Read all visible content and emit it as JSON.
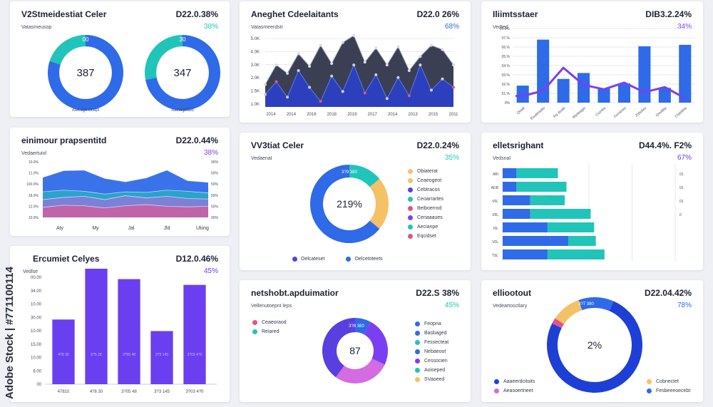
{
  "colors": {
    "blue": "#2f6ae8",
    "deep_blue": "#1e3fd6",
    "teal": "#21c4b8",
    "purple": "#6a3ff0",
    "violet": "#7b3ff2",
    "pink": "#e8508a",
    "orange": "#f5c166",
    "magenta": "#d46be0",
    "light": "#e9ecf3",
    "grid": "#e6e8ee",
    "text": "#1c2233"
  },
  "cards": {
    "c1": {
      "title": "V2Stmeidestiat Celer",
      "value": "D22.0.38%",
      "sub": "Vatasmeusop",
      "pct": "38%"
    },
    "c2": {
      "title": "Aneghet Cdeelaitants",
      "value": "D22.0 26%",
      "sub": "Vatasmeerdstr",
      "pct": "68%"
    },
    "c3": {
      "title": "Iliimtsstaer",
      "value": "DIB3.2.24%",
      "sub": "Vedted",
      "pct": "34%"
    },
    "c4": {
      "title": "einimour prapsentitd",
      "value": "D22.0.44%",
      "sub": "Vedaertuiol",
      "pct": "38%"
    },
    "c5": {
      "title": "VV3tiat Celer",
      "value": "D22.0.24%",
      "sub": "Vedaenat",
      "pct": "35%"
    },
    "c6": {
      "title": "elletsrighant",
      "value": "D44.4%. F2%",
      "sub": "Vedsnal",
      "pct": "67%"
    },
    "c7": {
      "title": "Ercumiet Celyes",
      "value": "D12.0.46%",
      "sub": "Vedlse",
      "pct": "45%"
    },
    "c8": {
      "title": "netshobt.apduimatior",
      "value": "D22.S 38%",
      "sub": "Vellenutoepnt leps",
      "pct": "45%"
    },
    "c9": {
      "title": "elliootout",
      "value": "D22.04.42%",
      "sub": "Vedeartosctlary",
      "pct": "78%"
    }
  },
  "watermark": "Adobe Stock | #771100114",
  "chart_data": [
    {
      "id": "c1",
      "type": "pie",
      "title": "V2Stmeidestiat Celer",
      "donuts": [
        {
          "center_label": "387",
          "top_label": "00",
          "bottom_label": "Aweage Scept",
          "slices": [
            {
              "value": 80,
              "color": "#2f6ae8"
            },
            {
              "value": 20,
              "color": "#21c4b8"
            }
          ]
        },
        {
          "center_label": "347",
          "top_label": "30",
          "bottom_label": "Aaviagetibd",
          "slices": [
            {
              "value": 72,
              "color": "#2f6ae8"
            },
            {
              "value": 28,
              "color": "#21c4b8"
            }
          ]
        }
      ]
    },
    {
      "id": "c2",
      "type": "area",
      "title": "Aneghet Cdeelaitants",
      "x_labels": [
        "2014",
        "2014",
        "2016",
        "2018",
        "2019",
        "2017",
        "2014",
        "2013",
        "2015",
        "2011"
      ],
      "y_labels": [
        "5.0K",
        "4.0K",
        "3.0K",
        "2.0K",
        "1.5K",
        "1.0K"
      ],
      "ylim": [
        0,
        5.5
      ],
      "series": [
        {
          "values": [
            1.6,
            3.0,
            2.4,
            3.8,
            2.9,
            4.4,
            3.1,
            4.6,
            5.1,
            3.2,
            4.2,
            3.0,
            4.3,
            2.6,
            3.6,
            4.4,
            4.1,
            3.0
          ]
        },
        {
          "values": [
            0.9,
            1.8,
            0.7,
            2.6,
            1.4,
            0.4,
            2.2,
            1.1,
            3.0,
            1.0,
            2.3,
            0.6,
            2.1,
            0.8,
            3.0,
            1.2,
            2.0,
            1.4
          ]
        }
      ],
      "dark_color": "#3b3f54",
      "front_color": "#2b40c8"
    },
    {
      "id": "c3",
      "type": "bar",
      "title": "Iliimtsstaer",
      "categories": [
        "Qeaiit",
        "Esuetriadio",
        "Ioy dustb",
        "Wyrteagio",
        "Ciumbo",
        "Dzrnbreo",
        "Zrttiobro",
        "Qreditlsi",
        "Cliahtlihe"
      ],
      "y_labels": [
        "01.8%",
        "07.%",
        "06.%",
        "05.%",
        "04.%",
        "03.%",
        "02.%",
        "01.%",
        "0%"
      ],
      "ylim": [
        0,
        10
      ],
      "values": [
        2.3,
        8.5,
        3.2,
        4.0,
        1.9,
        2.6,
        7.6,
        2.0,
        7.8
      ],
      "line": [
        0.9,
        1.6,
        4.7,
        2.4,
        1.8,
        2.7,
        1.4,
        2.1,
        0.6
      ],
      "bar_color": "#2f6ae8",
      "line_color": "#7b3ff2"
    },
    {
      "id": "c4",
      "type": "area",
      "title": "einimour prapsentitd",
      "x_labels": [
        "Aty",
        "My",
        "Jal",
        "Jld",
        "Uking"
      ],
      "y_labels_left": [
        "10.0%",
        "11.0%",
        "100.0%",
        "18.0%",
        "12.0%",
        "10.0%"
      ],
      "y_labels_right": [
        "90%",
        "50%",
        "50%",
        "50%",
        "50%",
        "90%"
      ],
      "ylim": [
        0,
        10
      ],
      "series": [
        {
          "values": [
            7.2,
            8.4,
            8.5,
            7.0,
            6.4,
            7.1,
            8.5,
            6.6,
            6.3
          ],
          "color": "#2f6ae8"
        },
        {
          "values": [
            4.6,
            4.9,
            4.7,
            4.2,
            4.6,
            4.5,
            4.9,
            4.7,
            4.4
          ],
          "color": "#21c4b8"
        },
        {
          "values": [
            3.2,
            3.6,
            3.8,
            3.2,
            3.9,
            3.5,
            3.8,
            3.4,
            3.3
          ],
          "color": "#b06ae0"
        },
        {
          "values": [
            1.8,
            2.2,
            2.1,
            1.7,
            2.1,
            2.3,
            2.0,
            1.9,
            2.0
          ],
          "color": "#f0508a"
        }
      ]
    },
    {
      "id": "c5",
      "type": "pie",
      "title": "VV3tiat Celer",
      "center_label": "219%",
      "slice_label": "3?9 380",
      "slices": [
        {
          "value": 14,
          "color": "#21c4b8"
        },
        {
          "value": 22,
          "color": "#f5c166"
        },
        {
          "value": 64,
          "color": "#2f6ae8"
        }
      ],
      "legend": [
        {
          "label": "Obiaterat",
          "color": "#f5c166"
        },
        {
          "label": "Ceaeogeot",
          "color": "#f5c166"
        },
        {
          "label": "Cebtracos",
          "color": "#5a3fe0"
        },
        {
          "label": "Ceoarrartes",
          "color": "#21c4b8"
        },
        {
          "label": "Beiboerrod",
          "color": "#e8508a"
        },
        {
          "label": "Cenaaaues",
          "color": "#7b3ff2"
        },
        {
          "label": "Aecianpe",
          "color": "#21c4b8"
        },
        {
          "label": "Eqcidset",
          "color": "#e8508a"
        }
      ],
      "bottom_legend": [
        {
          "label": "Oelcateset",
          "color": "#5a3fe0"
        },
        {
          "label": "Oelcetoteets",
          "color": "#2f6ae8"
        }
      ]
    },
    {
      "id": "c6",
      "type": "bar",
      "orientation": "horizontal",
      "title": "elletsrighant",
      "y_labels_left": [
        "ABI",
        "ADB",
        "V6L",
        "V8L",
        "I0L",
        "V0L",
        "TSL"
      ],
      "y_labels_right": [
        "01",
        "01",
        "01",
        "0",
        "",
        "",
        ""
      ],
      "xlim": [
        0,
        10
      ],
      "series": [
        {
          "values": [
            0.8,
            0.8,
            1.6,
            1.6,
            2.6,
            3.8,
            2.6
          ],
          "color": "#2f6ae8"
        },
        {
          "values": [
            2.4,
            2.9,
            2.0,
            3.5,
            2.7,
            1.6,
            3.3
          ],
          "color": "#21c4b8"
        }
      ]
    },
    {
      "id": "c7",
      "type": "bar",
      "title": "Ercumiet Celyes",
      "categories": [
        "47810",
        "4?8 30",
        "3?05 48",
        "3?3 145",
        "3?03 4?0"
      ],
      "bar_labels": [
        "4?8 30",
        "5?5 28",
        "3?05 48",
        "3?3 145",
        "3?03 4?0"
      ],
      "y_labels": [
        "00.00",
        "34.00",
        "10.00",
        "30.00",
        "10.00",
        "15.00",
        "10.00",
        "8.00",
        "00"
      ],
      "ylim": [
        0,
        10
      ],
      "values": [
        5.6,
        10.0,
        9.1,
        4.6,
        8.6
      ],
      "bar_color": "#6a3ff0"
    },
    {
      "id": "c8",
      "type": "pie",
      "title": "netshobt.apduimatior",
      "center_label": "87",
      "slice_label": "3?8 380",
      "slices": [
        {
          "value": 8,
          "color": "#2f6ae8"
        },
        {
          "value": 24,
          "color": "#7b3ff2"
        },
        {
          "value": 28,
          "color": "#d46be0"
        },
        {
          "value": 40,
          "color": "#5a3fe0"
        }
      ],
      "legend_left": [
        {
          "label": "Ceaeoraod",
          "color": "#e8508a"
        },
        {
          "label": "Reiared",
          "color": "#21c4b8"
        }
      ],
      "legend": [
        {
          "label": "Feopria",
          "color": "#2f6ae8"
        },
        {
          "label": "Basbaged",
          "color": "#2f6ae8"
        },
        {
          "label": "Fessecteat",
          "color": "#21c4b8"
        },
        {
          "label": "Nebaeoot",
          "color": "#2f6ae8"
        },
        {
          "label": "Cessocien",
          "color": "#7b3ff2"
        },
        {
          "label": "Aoiseped",
          "color": "#21c4b8"
        },
        {
          "label": "SVaoeed",
          "color": "#f5c166"
        }
      ]
    },
    {
      "id": "c9",
      "type": "pie",
      "title": "elliootout",
      "center_label": "2%",
      "slice_label": "3?7 380",
      "slices": [
        {
          "value": 2,
          "color": "#e8508a"
        },
        {
          "value": 10,
          "color": "#f5c166"
        },
        {
          "value": 12,
          "color": "#2f6ae8"
        },
        {
          "value": 76,
          "color": "#1e3fd6"
        }
      ],
      "bottom_legend_left": [
        {
          "label": "Aaaeerdcitoits",
          "color": "#1e3fd6"
        },
        {
          "label": "Aeasoertrieet",
          "color": "#d46be0"
        }
      ],
      "bottom_legend_right": [
        {
          "label": "Cobnectet",
          "color": "#f5c166"
        },
        {
          "label": "Fesbeeeoecebt",
          "color": "#2f6ae8"
        }
      ]
    }
  ]
}
